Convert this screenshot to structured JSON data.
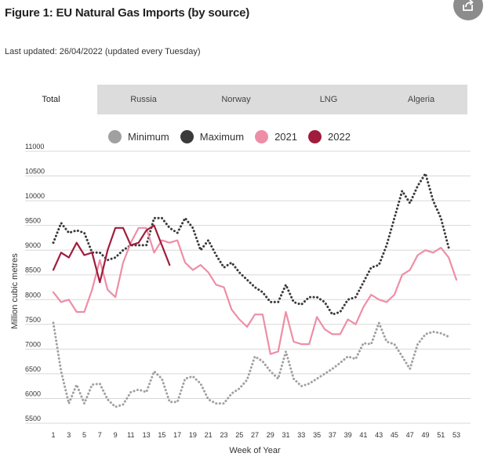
{
  "header": {
    "title": "Figure 1: EU Natural Gas Imports (by source)",
    "last_updated": "Last updated: 26/04/2022 (updated every Tuesday)"
  },
  "tabs": [
    {
      "label": "Total",
      "active": true
    },
    {
      "label": "Russia",
      "active": false
    },
    {
      "label": "Norway",
      "active": false
    },
    {
      "label": "LNG",
      "active": false
    },
    {
      "label": "Algeria",
      "active": false
    }
  ],
  "chart_data": {
    "type": "line",
    "title": "",
    "xlabel": "Week of Year",
    "ylabel": "Million cubic metres",
    "xlim": [
      1,
      53
    ],
    "ylim": [
      5500,
      11000
    ],
    "x_ticks": [
      1,
      3,
      5,
      7,
      9,
      11,
      13,
      15,
      17,
      19,
      21,
      23,
      25,
      27,
      29,
      31,
      33,
      35,
      37,
      39,
      41,
      43,
      45,
      47,
      49,
      51,
      53
    ],
    "y_ticks": [
      5500,
      6000,
      6500,
      7000,
      7500,
      8000,
      8500,
      9000,
      9500,
      10000,
      10500,
      11000
    ],
    "grid": true,
    "legend_position": "top",
    "series": [
      {
        "name": "Minimum",
        "color": "#a0a0a0",
        "style": "dotted",
        "x": [
          1,
          2,
          3,
          4,
          5,
          6,
          7,
          8,
          9,
          10,
          11,
          12,
          13,
          14,
          15,
          16,
          17,
          18,
          19,
          20,
          21,
          22,
          23,
          24,
          25,
          26,
          27,
          28,
          29,
          30,
          31,
          32,
          33,
          34,
          35,
          36,
          37,
          38,
          39,
          40,
          41,
          42,
          43,
          44,
          45,
          46,
          47,
          48,
          49,
          50,
          51,
          52
        ],
        "values": [
          7530,
          6550,
          5900,
          6280,
          5900,
          6280,
          6300,
          5980,
          5830,
          5880,
          6130,
          6180,
          6130,
          6550,
          6400,
          5930,
          5930,
          6400,
          6450,
          6300,
          5980,
          5900,
          5900,
          6100,
          6200,
          6380,
          6850,
          6750,
          6550,
          6400,
          6950,
          6400,
          6250,
          6300,
          6400,
          6500,
          6600,
          6720,
          6850,
          6800,
          7120,
          7100,
          7530,
          7150,
          7100,
          6850,
          6600,
          7100,
          7300,
          7350,
          7320,
          7250
        ]
      },
      {
        "name": "Maximum",
        "color": "#3a3a3a",
        "style": "dotted",
        "x": [
          1,
          2,
          3,
          4,
          5,
          6,
          7,
          8,
          9,
          10,
          11,
          12,
          13,
          14,
          15,
          16,
          17,
          18,
          19,
          20,
          21,
          22,
          23,
          24,
          25,
          26,
          27,
          28,
          29,
          30,
          31,
          32,
          33,
          34,
          35,
          36,
          37,
          38,
          39,
          40,
          41,
          42,
          43,
          44,
          45,
          46,
          47,
          48,
          49,
          50,
          51,
          52
        ],
        "values": [
          9150,
          9550,
          9350,
          9400,
          9350,
          8950,
          8950,
          8800,
          8850,
          9000,
          9100,
          9100,
          9100,
          9650,
          9650,
          9450,
          9350,
          9650,
          9450,
          9000,
          9200,
          8900,
          8650,
          8750,
          8550,
          8400,
          8250,
          8150,
          7950,
          7950,
          8300,
          7950,
          7900,
          8050,
          8050,
          7950,
          7700,
          7750,
          8000,
          8050,
          8350,
          8650,
          8700,
          9100,
          9650,
          10200,
          9950,
          10300,
          10550,
          10000,
          9650,
          9050
        ]
      },
      {
        "name": "2021",
        "color": "#ee8ea6",
        "style": "solid",
        "x": [
          1,
          2,
          3,
          4,
          5,
          6,
          7,
          8,
          9,
          10,
          11,
          12,
          13,
          14,
          15,
          16,
          17,
          18,
          19,
          20,
          21,
          22,
          23,
          24,
          25,
          26,
          27,
          28,
          29,
          30,
          31,
          32,
          33,
          34,
          35,
          36,
          37,
          38,
          39,
          40,
          41,
          42,
          43,
          44,
          45,
          46,
          47,
          48,
          49,
          50,
          51,
          52,
          53
        ],
        "values": [
          8150,
          7950,
          8000,
          7750,
          7750,
          8200,
          8800,
          8200,
          8050,
          8750,
          9150,
          9450,
          9450,
          8950,
          9200,
          9150,
          9200,
          8750,
          8600,
          8700,
          8550,
          8300,
          8250,
          7800,
          7600,
          7450,
          7700,
          7700,
          6900,
          6950,
          7750,
          7150,
          7100,
          7100,
          7650,
          7400,
          7300,
          7300,
          7600,
          7500,
          7850,
          8100,
          8000,
          7950,
          8100,
          8500,
          8600,
          8900,
          9000,
          8950,
          9050,
          8850,
          8400
        ]
      },
      {
        "name": "2022",
        "color": "#a01c3c",
        "style": "solid",
        "x": [
          1,
          2,
          3,
          4,
          5,
          6,
          7,
          8,
          9,
          10,
          11,
          12,
          13,
          14,
          15,
          16
        ],
        "values": [
          8600,
          8950,
          8850,
          9150,
          8900,
          8950,
          8350,
          9000,
          9450,
          9450,
          9100,
          9150,
          9400,
          9500,
          9100,
          8700
        ]
      }
    ]
  }
}
